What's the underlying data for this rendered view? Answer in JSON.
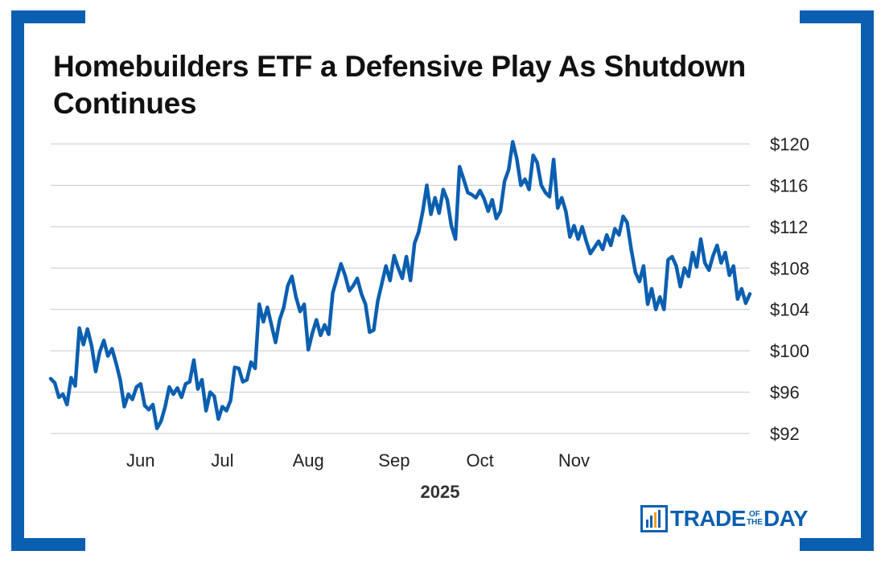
{
  "header": {
    "title": "Homebuilders ETF a Defensive Play As Shutdown Continues"
  },
  "logo": {
    "part1": "TRADE",
    "part2": "OF",
    "part3": "THE",
    "part4": "DAY",
    "icon": "bar-chart-icon"
  },
  "colors": {
    "line": "#0b5fb0",
    "frame": "#0b5fb0",
    "grid": "#c8c8c8"
  },
  "chart_data": {
    "type": "line",
    "title": "Homebuilders ETF a Defensive Play As Shutdown Continues",
    "xlabel": "2025",
    "ylabel": "",
    "ylim": [
      92,
      120
    ],
    "yticks": [
      92,
      96,
      100,
      104,
      108,
      112,
      116,
      120
    ],
    "ytick_labels": [
      "$92",
      "$96",
      "$100",
      "$104",
      "$108",
      "$112",
      "$116",
      "$120"
    ],
    "y_axis_side": "right",
    "grid": true,
    "xticks": [
      {
        "index": 22,
        "label": "Jun"
      },
      {
        "index": 42,
        "label": "Jul"
      },
      {
        "index": 63,
        "label": "Aug"
      },
      {
        "index": 84,
        "label": "Sep"
      },
      {
        "index": 105,
        "label": "Oct"
      },
      {
        "index": 128,
        "label": "Nov"
      }
    ],
    "series": [
      {
        "name": "Homebuilders ETF",
        "values": [
          97.3,
          96.9,
          95.5,
          95.8,
          94.8,
          97.4,
          96.6,
          102.2,
          100.6,
          102.1,
          100.5,
          98.0,
          99.9,
          101.0,
          99.5,
          100.2,
          98.8,
          97.2,
          94.6,
          95.8,
          95.3,
          96.5,
          96.8,
          94.7,
          94.3,
          94.8,
          92.5,
          93.2,
          94.6,
          96.5,
          95.8,
          96.4,
          95.5,
          96.8,
          97.0,
          99.1,
          96.3,
          97.2,
          94.2,
          96.0,
          95.6,
          93.4,
          94.6,
          94.2,
          95.2,
          98.4,
          98.3,
          97.0,
          97.2,
          98.9,
          98.3,
          104.5,
          102.8,
          104.2,
          102.5,
          100.8,
          103.0,
          104.2,
          106.3,
          107.2,
          105.2,
          103.8,
          104.5,
          100.1,
          101.7,
          103.0,
          101.5,
          102.5,
          101.6,
          105.6,
          107.0,
          108.4,
          107.3,
          105.8,
          106.3,
          107.0,
          105.5,
          104.5,
          101.8,
          102.0,
          104.8,
          106.5,
          108.2,
          106.8,
          109.2,
          108.0,
          107.0,
          109.1,
          106.8,
          110.4,
          111.5,
          113.5,
          116.0,
          113.2,
          114.8,
          113.3,
          115.6,
          114.6,
          112.1,
          110.8,
          117.8,
          116.6,
          115.3,
          115.1,
          114.8,
          115.5,
          114.7,
          113.5,
          114.6,
          112.8,
          113.5,
          116.4,
          117.5,
          120.2,
          118.6,
          116.0,
          116.6,
          115.6,
          118.9,
          118.2,
          116.0,
          115.3,
          114.9,
          118.5,
          113.8,
          114.8,
          113.5,
          111.0,
          112.1,
          110.8,
          112.0,
          110.6,
          109.4,
          110.0,
          110.6,
          109.8,
          111.2,
          110.2,
          111.8,
          111.2,
          113.0,
          112.4,
          109.8,
          107.6,
          106.7,
          108.2,
          104.5,
          106.0,
          104.0,
          105.2,
          104.0,
          108.8,
          109.1,
          108.2,
          106.2,
          108.0,
          107.2,
          109.5,
          108.1,
          110.8,
          108.5,
          107.8,
          109.2,
          110.2,
          108.5,
          109.5,
          107.3,
          108.2,
          105.0,
          106.0,
          104.6,
          105.5
        ]
      }
    ]
  }
}
